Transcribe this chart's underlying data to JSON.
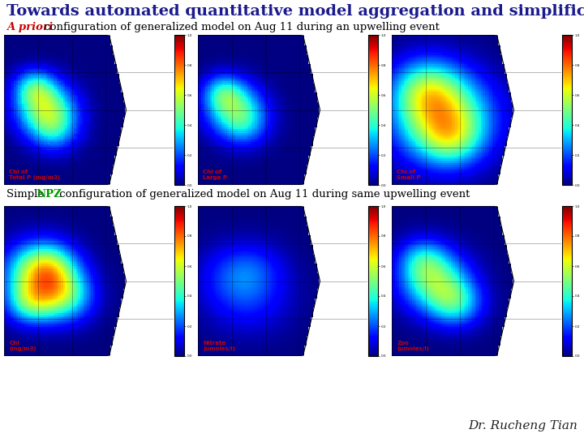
{
  "title": "Towards automated quantitative model aggregation and simplification",
  "subtitle1_italic": "A priori",
  "subtitle1_rest": " configuration of generalized model on Aug 11 during an upwelling event",
  "subtitle2_prefix": "Simple ",
  "subtitle2_npz": "NPZ",
  "subtitle2_rest": " configuration of generalized model on Aug 11 during same upwelling event",
  "labels_row1": [
    "Chl of\nTotal P (mg/m3)",
    "Chl of\nLarge P",
    "Chl of\nSmall P"
  ],
  "labels_row2": [
    "Chl\n(mg/m3)",
    "Nitrate\n(umoles/l)",
    "Zoo\n(umoles/l)"
  ],
  "author": "Dr. Rucheng Tian",
  "title_color": "#1a1a8c",
  "apriori_color": "#cc0000",
  "npz_color": "#009900",
  "label_color": "#cc0000",
  "background_color": "#ffffff",
  "land_color": "#c8a060",
  "ocean_light": "#add8e6",
  "ocean_dark": "#00008b"
}
